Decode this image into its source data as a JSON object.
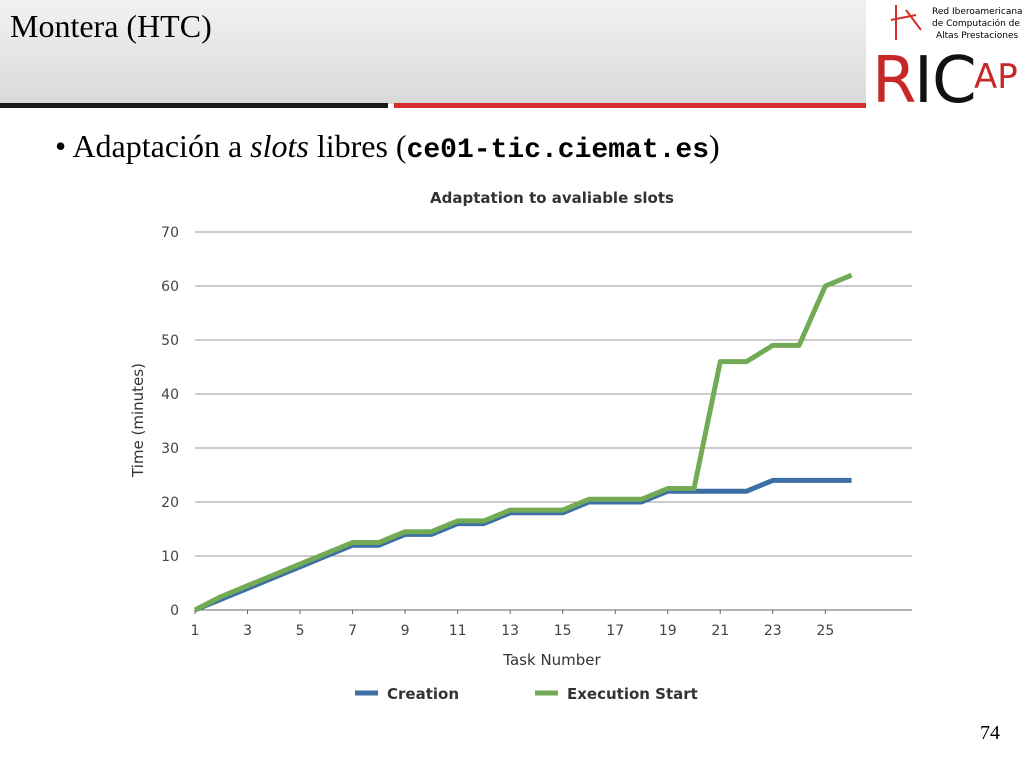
{
  "slide": {
    "title": "Montera (HTC)",
    "bullet": [
      "Adaptación a ",
      "slots",
      " libres (",
      "ce01-tic.ciemat.es",
      ")"
    ],
    "logo": {
      "lines": [
        "Red Iberoamericana",
        "de Computación de",
        "Altas Prestaciones"
      ],
      "letters": [
        "R",
        "I",
        "C",
        "AP"
      ]
    },
    "page_number": "74"
  },
  "chart_data": {
    "type": "line",
    "title": "Adaptation to avaliable slots",
    "x_label": "Task Number",
    "y_label": "Time (minutes)",
    "x": [
      1,
      2,
      3,
      4,
      5,
      6,
      7,
      8,
      9,
      10,
      11,
      12,
      13,
      14,
      15,
      16,
      17,
      18,
      19,
      20,
      21,
      22,
      23,
      24,
      25,
      26
    ],
    "series": [
      {
        "name": "Creation",
        "color": "#3b6fa6",
        "values": [
          0,
          2,
          4,
          6,
          8,
          10,
          12,
          12,
          14,
          14,
          16,
          16,
          18,
          18,
          18,
          20,
          20,
          20,
          22,
          22,
          22,
          22,
          24,
          24,
          24,
          24
        ]
      },
      {
        "name": "Execution Start",
        "color": "#72aa55",
        "values": [
          0,
          2.5,
          4.5,
          6.5,
          8.5,
          10.5,
          12.5,
          12.5,
          14.5,
          14.5,
          16.5,
          16.5,
          18.5,
          18.5,
          18.5,
          20.5,
          20.5,
          20.5,
          22.5,
          22.5,
          46,
          46,
          49,
          49,
          60,
          62
        ]
      }
    ],
    "xlim": [
      1,
      28.3
    ],
    "xticks": [
      1,
      3,
      5,
      7,
      9,
      11,
      13,
      15,
      17,
      19,
      21,
      23,
      25
    ],
    "ylim": [
      0,
      70
    ],
    "yticks": [
      0,
      10,
      20,
      30,
      40,
      50,
      60,
      70
    ],
    "grid": true,
    "legend": "bottom"
  }
}
